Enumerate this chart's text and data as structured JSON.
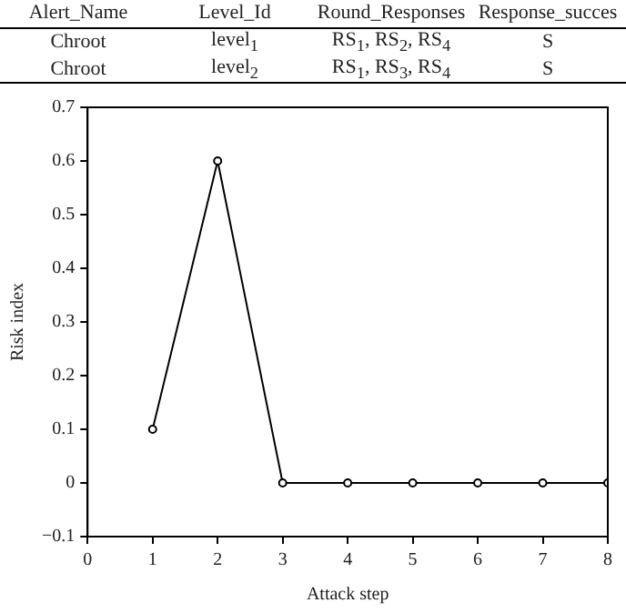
{
  "chart_data": {
    "type": "line",
    "xlabel": "Attack step",
    "ylabel": "Risk index",
    "x": [
      1,
      2,
      3,
      4,
      5,
      6,
      7,
      8
    ],
    "series": [
      {
        "color": "#000000",
        "values": [
          0.1,
          0.6,
          0,
          0,
          0,
          0,
          0,
          0
        ]
      }
    ],
    "xlim": [
      0,
      8
    ],
    "xticks": [
      0,
      1,
      2,
      3,
      4,
      5,
      6,
      7,
      8
    ],
    "ylim": [
      -0.1,
      0.7
    ],
    "yticks": [
      {
        "value": -0.1,
        "label": "−0.1"
      },
      0,
      0.1,
      0.2,
      0.3,
      0.4,
      0.5,
      0.6,
      0.7
    ],
    "marker": "circle",
    "line_style": "solid",
    "grid": false,
    "legend": false,
    "annotations": [
      "Alert_Name",
      "Level_Id",
      "Round_Responses",
      "Response_succes",
      "Chroot",
      "level$_{1}$",
      "RS$_{1}$, RS$_{2}$, RS$_{4}$",
      "S",
      "Chroot",
      "level$_{2}$",
      "RS$_{1}$, RS$_{3}$, RS$_{4}$",
      "S"
    ]
  }
}
